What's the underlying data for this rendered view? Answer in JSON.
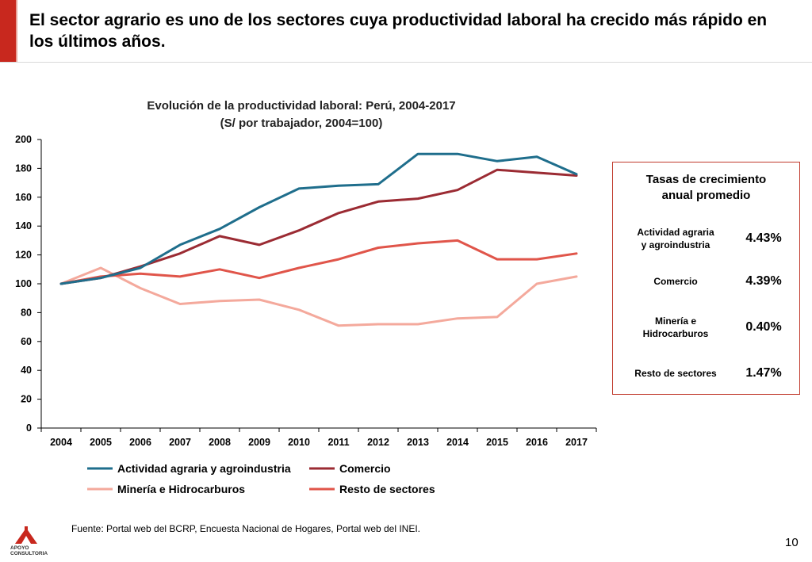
{
  "page": {
    "title": "El sector agrario es uno de los sectores cuya productividad laboral ha crecido más rápido en los últimos años.",
    "source": "Fuente: Portal web del BCRP, Encuesta Nacional de Hogares, Portal web del INEI.",
    "page_number": "10",
    "logo_line1": "APOYO",
    "logo_line2": "CONSULTORIA",
    "accent_color": "#c8281e"
  },
  "chart_data": {
    "type": "line",
    "title": "Evolución de la productividad laboral: Perú, 2004-2017",
    "subtitle": "(S/ por trabajador, 2004=100)",
    "x": [
      "2004",
      "2005",
      "2006",
      "2007",
      "2008",
      "2009",
      "2010",
      "2011",
      "2012",
      "2013",
      "2014",
      "2015",
      "2016",
      "2017"
    ],
    "ylim": [
      0,
      200
    ],
    "yticks": [
      0,
      20,
      40,
      60,
      80,
      100,
      120,
      140,
      160,
      180,
      200
    ],
    "grid": false,
    "legend_position": "bottom",
    "series": [
      {
        "name": "Actividad agraria y agroindustria",
        "color": "#1f6e8c",
        "values": [
          100,
          104,
          111,
          127,
          138,
          153,
          166,
          168,
          169,
          190,
          190,
          185,
          188,
          176
        ]
      },
      {
        "name": "Comercio",
        "color": "#9b2b33",
        "values": [
          100,
          104,
          112,
          121,
          133,
          127,
          137,
          149,
          157,
          159,
          165,
          179,
          177,
          175
        ]
      },
      {
        "name": "Minería e Hidrocarburos",
        "color": "#f4a99c",
        "values": [
          100,
          111,
          97,
          86,
          88,
          89,
          82,
          71,
          72,
          72,
          76,
          77,
          100,
          105
        ]
      },
      {
        "name": "Resto de sectores",
        "color": "#e0554a",
        "values": [
          100,
          105,
          107,
          105,
          110,
          104,
          111,
          117,
          125,
          128,
          130,
          117,
          117,
          121
        ]
      }
    ]
  },
  "rates": {
    "title_line1": "Tasas de crecimiento",
    "title_line2": "anual promedio",
    "rows": [
      {
        "label_line1": "Actividad agraria",
        "label_line2": "y agroindustria",
        "value": "4.43%"
      },
      {
        "label_line1": "Comercio",
        "label_line2": "",
        "value": "4.39%"
      },
      {
        "label_line1": "Minería e",
        "label_line2": "Hidrocarburos",
        "value": "0.40%"
      },
      {
        "label_line1": "Resto de sectores",
        "label_line2": "",
        "value": "1.47%"
      }
    ]
  }
}
